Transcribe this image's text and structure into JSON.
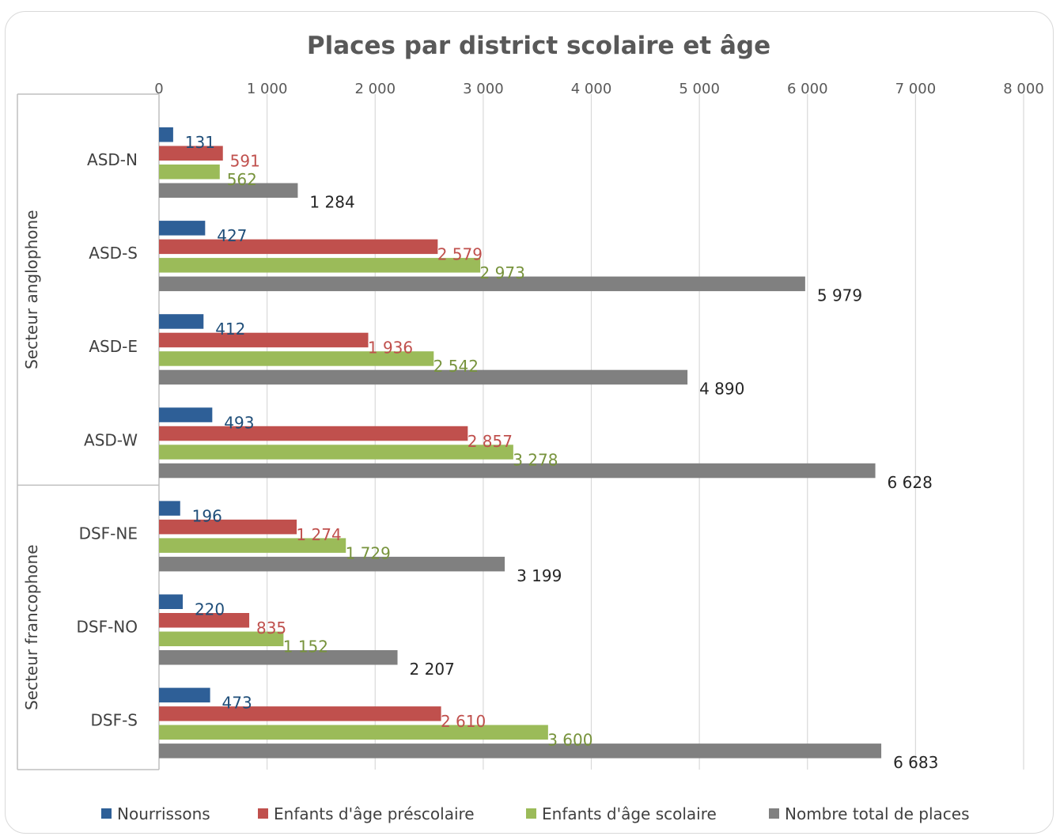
{
  "chart_data": {
    "type": "bar",
    "orientation": "horizontal",
    "title": "Places par district scolaire et âge",
    "xlim": [
      0,
      8000
    ],
    "x_ticks": [
      0,
      1000,
      2000,
      3000,
      4000,
      5000,
      6000,
      7000,
      8000
    ],
    "x_tick_labels": [
      "0",
      "1 000",
      "2 000",
      "3 000",
      "4 000",
      "5 000",
      "6 000",
      "7 000",
      "8 000"
    ],
    "grid": true,
    "legend_position": "bottom",
    "groups": [
      {
        "label": "Secteur anglophone",
        "categories": [
          "ASD-N",
          "ASD-S",
          "ASD-E",
          "ASD-W"
        ]
      },
      {
        "label": "Secteur francophone",
        "categories": [
          "DSF-NE",
          "DSF-NO",
          "DSF-S"
        ]
      }
    ],
    "categories": [
      "ASD-N",
      "ASD-S",
      "ASD-E",
      "ASD-W",
      "DSF-NE",
      "DSF-NO",
      "DSF-S"
    ],
    "series": [
      {
        "name": "Nourrissons",
        "color": "#2e5f97",
        "label_color": "#1f4e79",
        "values": [
          131,
          427,
          412,
          493,
          196,
          220,
          473
        ],
        "labels": [
          "131",
          "427",
          "412",
          "493",
          "196",
          "220",
          "473"
        ]
      },
      {
        "name": "Enfants d'âge préscolaire",
        "color": "#c0504d",
        "label_color": "#c0504d",
        "values": [
          591,
          2579,
          1936,
          2857,
          1274,
          835,
          2610
        ],
        "labels": [
          "591",
          "2 579",
          "1 936",
          "2 857",
          "1 274",
          "835",
          "2 610"
        ]
      },
      {
        "name": "Enfants d'âge scolaire",
        "color": "#9bbb59",
        "label_color": "#77933c",
        "values": [
          562,
          2973,
          2542,
          3278,
          1729,
          1152,
          3600
        ],
        "labels": [
          "562",
          "2 973",
          "2 542",
          "3 278",
          "1 729",
          "1 152",
          "3 600"
        ]
      },
      {
        "name": "Nombre total de places",
        "color": "#808080",
        "label_color": "#262626",
        "values": [
          1284,
          5979,
          4890,
          6628,
          3199,
          2207,
          6683
        ],
        "labels": [
          "1 284",
          "5 979",
          "4 890",
          "6 628",
          "3 199",
          "2 207",
          "6 683"
        ]
      }
    ]
  }
}
